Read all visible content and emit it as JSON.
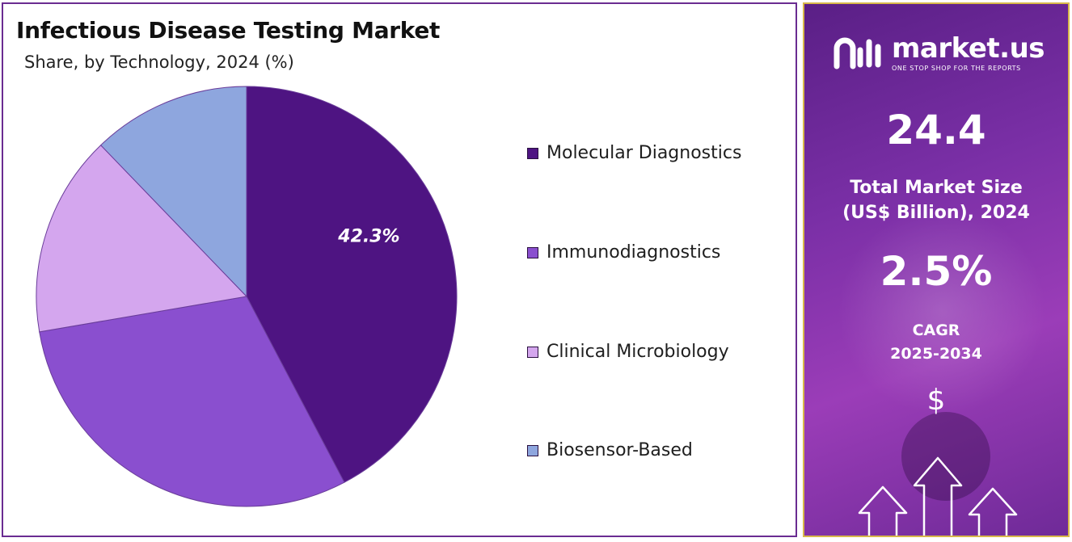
{
  "chart_data": {
    "type": "pie",
    "title": "Infectious Disease Testing Market",
    "subtitle": "Share, by Technology, 2024 (%)",
    "categories": [
      "Molecular Diagnostics",
      "Immunodiagnostics",
      "Clinical Microbiology",
      "Biosensor-Based"
    ],
    "values": [
      42.3,
      30.0,
      15.5,
      12.2
    ],
    "data_labels": [
      "42.3%",
      "",
      "",
      ""
    ],
    "colors": [
      "#4e1482",
      "#8a4fcf",
      "#d4a6ee",
      "#8ea6de"
    ],
    "legend_position": "right"
  },
  "panel": {
    "brand_name": "market.us",
    "brand_tagline": "ONE STOP SHOP FOR THE REPORTS",
    "market_size_value": "24.4",
    "market_size_label_line1": "Total Market Size",
    "market_size_label_line2": "(US$ Billion), 2024",
    "cagr_value": "2.5%",
    "cagr_label_line1": "CAGR",
    "cagr_label_line2": "2025-2034",
    "dollar_symbol": "$"
  }
}
